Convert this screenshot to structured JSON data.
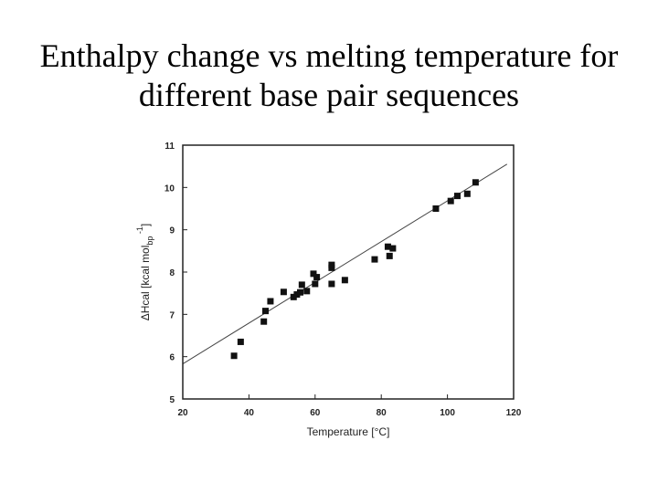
{
  "slide": {
    "title_line1": "Enthalpy change vs melting temperature for",
    "title_line2": "different base pair sequences"
  },
  "chart_data": {
    "type": "scatter",
    "title": "",
    "xlabel": "Temperature   [°C]",
    "ylabel_main": "ΔHcal  [kcal mol",
    "ylabel_sub": "bp",
    "ylabel_sup": "-1",
    "ylabel_close": "]",
    "xlim": [
      20,
      120
    ],
    "ylim": [
      5,
      11
    ],
    "xticks": [
      20,
      40,
      60,
      80,
      100,
      120
    ],
    "yticks": [
      5,
      6,
      7,
      8,
      9,
      10,
      11
    ],
    "grid": false,
    "legend": "none",
    "marker": "square",
    "color": "#111111",
    "points": [
      {
        "x": 35.5,
        "y": 6.02
      },
      {
        "x": 37.5,
        "y": 6.35
      },
      {
        "x": 44.5,
        "y": 6.83
      },
      {
        "x": 45.0,
        "y": 7.08
      },
      {
        "x": 46.5,
        "y": 7.31
      },
      {
        "x": 50.5,
        "y": 7.53
      },
      {
        "x": 53.5,
        "y": 7.41
      },
      {
        "x": 54.5,
        "y": 7.47
      },
      {
        "x": 55.5,
        "y": 7.52
      },
      {
        "x": 56.0,
        "y": 7.7
      },
      {
        "x": 57.5,
        "y": 7.55
      },
      {
        "x": 59.5,
        "y": 7.96
      },
      {
        "x": 60.0,
        "y": 7.72
      },
      {
        "x": 60.5,
        "y": 7.88
      },
      {
        "x": 65.0,
        "y": 8.1
      },
      {
        "x": 65.0,
        "y": 8.17
      },
      {
        "x": 65.0,
        "y": 7.72
      },
      {
        "x": 69.0,
        "y": 7.81
      },
      {
        "x": 78.0,
        "y": 8.3
      },
      {
        "x": 82.0,
        "y": 8.6
      },
      {
        "x": 82.5,
        "y": 8.38
      },
      {
        "x": 83.5,
        "y": 8.56
      },
      {
        "x": 96.5,
        "y": 9.5
      },
      {
        "x": 101.0,
        "y": 9.68
      },
      {
        "x": 103.0,
        "y": 9.8
      },
      {
        "x": 106.0,
        "y": 9.85
      },
      {
        "x": 108.5,
        "y": 10.12
      }
    ],
    "fit_line": {
      "x": [
        20,
        118
      ],
      "y": [
        5.83,
        10.55
      ]
    }
  }
}
